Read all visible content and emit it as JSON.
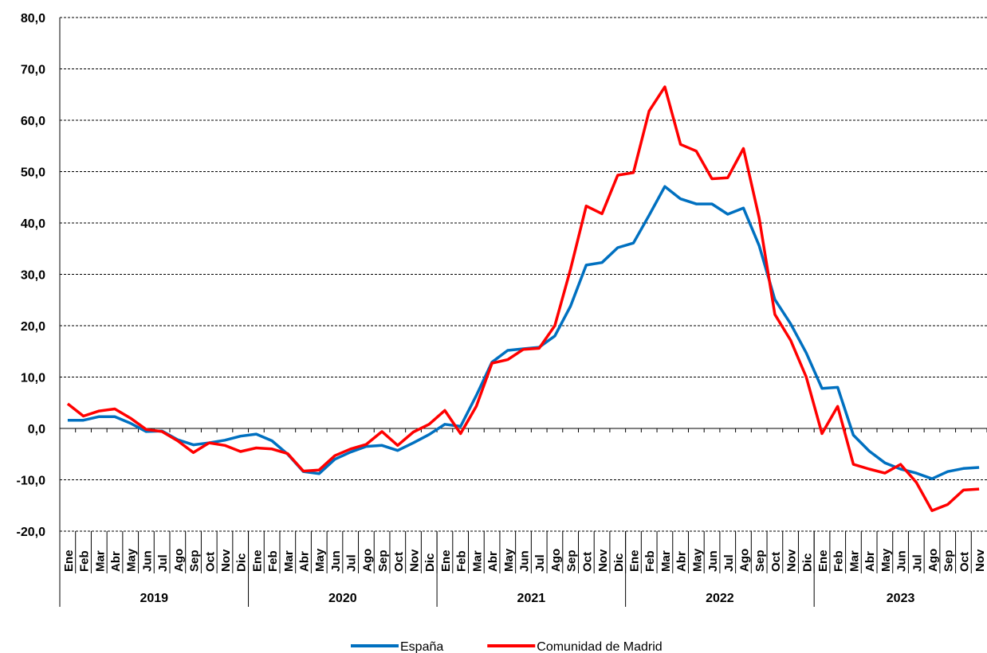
{
  "chart_data": {
    "type": "line",
    "categories": [
      "Ene",
      "Feb",
      "Mar",
      "Abr",
      "May",
      "Jun",
      "Jul",
      "Ago",
      "Sep",
      "Oct",
      "Nov",
      "Dic",
      "Ene",
      "Feb",
      "Mar",
      "Abr",
      "May",
      "Jun",
      "Jul",
      "Ago",
      "Sep",
      "Oct",
      "Nov",
      "Dic",
      "Ene",
      "Feb",
      "Mar",
      "Abr",
      "May",
      "Jun",
      "Jul",
      "Ago",
      "Sep",
      "Oct",
      "Nov",
      "Dic",
      "Ene",
      "Feb",
      "Mar",
      "Abr",
      "May",
      "Jun",
      "Jul",
      "Ago",
      "Sep",
      "Oct",
      "Nov",
      "Dic",
      "Ene",
      "Feb",
      "Mar",
      "Abr",
      "May",
      "Jun",
      "Jul",
      "Ago",
      "Sep",
      "Oct",
      "Nov"
    ],
    "groups": [
      "2019",
      "2020",
      "2021",
      "2022",
      "2023"
    ],
    "series": [
      {
        "name": "España",
        "color": "#0070c0",
        "values": [
          1.6,
          1.6,
          2.3,
          2.3,
          1.0,
          -0.6,
          -0.5,
          -2.2,
          -3.2,
          -2.8,
          -2.3,
          -1.5,
          -1.1,
          -2.4,
          -5.0,
          -8.4,
          -8.8,
          -6.0,
          -4.6,
          -3.5,
          -3.3,
          -4.3,
          -2.8,
          -1.2,
          0.8,
          0.4,
          6.4,
          12.9,
          15.2,
          15.5,
          15.8,
          18.0,
          23.8,
          31.8,
          32.3,
          35.2,
          36.1,
          41.5,
          47.1,
          44.7,
          43.7,
          43.7,
          41.7,
          42.9,
          35.6,
          25.1,
          20.4,
          14.7,
          7.8,
          8.0,
          -1.3,
          -4.4,
          -6.7,
          -7.9,
          -8.7,
          -9.8,
          -8.4,
          -7.8,
          -7.6
        ]
      },
      {
        "name": "Comunidad de Madrid",
        "color": "#ff0000",
        "values": [
          4.8,
          2.4,
          3.4,
          3.8,
          2.0,
          -0.2,
          -0.6,
          -2.4,
          -4.7,
          -2.8,
          -3.3,
          -4.5,
          -3.8,
          -4.0,
          -4.9,
          -8.3,
          -8.1,
          -5.3,
          -4.0,
          -3.1,
          -0.6,
          -3.3,
          -0.7,
          0.8,
          3.5,
          -1.0,
          4.3,
          12.7,
          13.4,
          15.4,
          15.6,
          20.0,
          31.0,
          43.3,
          41.8,
          49.3,
          49.8,
          61.8,
          66.5,
          55.3,
          54.0,
          48.6,
          48.8,
          54.5,
          41.0,
          22.2,
          17.2,
          10.0,
          -1.0,
          4.3,
          -7.0,
          -7.9,
          -8.7,
          -7.0,
          -10.5,
          -16.0,
          -14.8,
          -12.0,
          -11.8
        ]
      }
    ],
    "ylim": [
      -20,
      80
    ],
    "yticks": [
      {
        "value": -20,
        "label": "-20,0"
      },
      {
        "value": -10,
        "label": "-10,0"
      },
      {
        "value": 0,
        "label": "0,0"
      },
      {
        "value": 10,
        "label": "10,0"
      },
      {
        "value": 20,
        "label": "20,0"
      },
      {
        "value": 30,
        "label": "30,0"
      },
      {
        "value": 40,
        "label": "40,0"
      },
      {
        "value": 50,
        "label": "50,0"
      },
      {
        "value": 60,
        "label": "60,0"
      },
      {
        "value": 70,
        "label": "70,0"
      },
      {
        "value": 80,
        "label": "80,0"
      }
    ],
    "grid": true,
    "legend": "bottom"
  }
}
